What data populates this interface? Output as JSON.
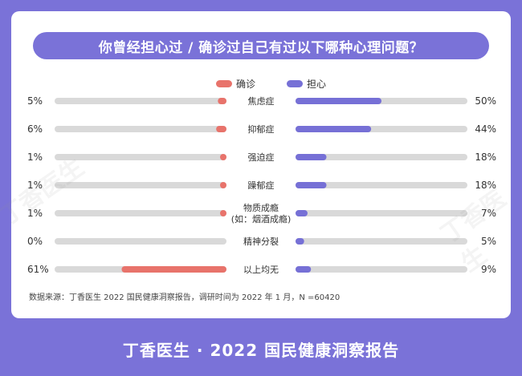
{
  "title": "你曾经担心过 / 确诊过自己有过以下哪种心理问题？",
  "source": "数据来源：丁香医生 2022 国民健康洞察报告，调研时间为 2022 年 1 月，N =60420",
  "footer": "丁香医生 · 2022 国民健康洞察报告",
  "watermark": "丁香医生",
  "colors": {
    "diagnosed": "#e8736b",
    "worried": "#7670d6",
    "track": "#d9d9d9",
    "accent": "#7a72d8"
  },
  "chart_data": {
    "type": "bar",
    "orientation": "horizontal-diverging",
    "legend": {
      "placement": "top-center",
      "entries": [
        "确诊",
        "担心"
      ]
    },
    "categories": [
      [
        "焦虑症"
      ],
      [
        "抑郁症"
      ],
      [
        "强迫症"
      ],
      [
        "躁郁症"
      ],
      [
        "物质成瘾",
        "(如：烟酒成瘾)"
      ],
      [
        "精神分裂"
      ],
      [
        "以上均无"
      ]
    ],
    "series": [
      {
        "name": "确诊",
        "values": [
          5,
          6,
          1,
          1,
          1,
          0,
          61
        ],
        "labels": [
          "5%",
          "6%",
          "1%",
          "1%",
          "1%",
          "0%",
          "61%"
        ]
      },
      {
        "name": "担心",
        "values": [
          50,
          44,
          18,
          18,
          7,
          5,
          9
        ],
        "labels": [
          "50%",
          "44%",
          "18%",
          "18%",
          "7%",
          "5%",
          "9%"
        ]
      }
    ],
    "xlim": [
      0,
      100
    ]
  }
}
